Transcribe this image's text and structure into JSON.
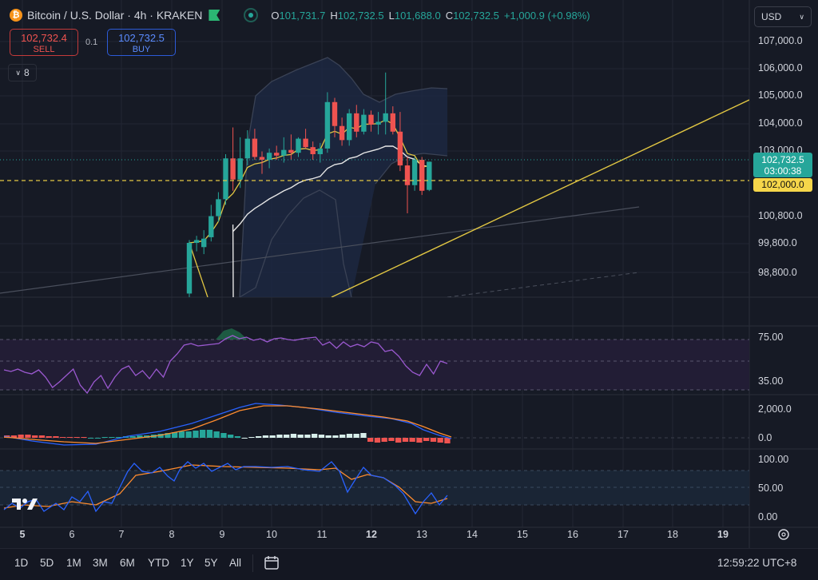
{
  "header": {
    "coin_icon": "bitcoin-icon",
    "title": "Bitcoin / U.S. Dollar · 4h · KRAKEN",
    "ohlc": {
      "open_key": "O",
      "open": "101,731.7",
      "high_key": "H",
      "high": "102,732.5",
      "low_key": "L",
      "low": "101,688.0",
      "close_key": "C",
      "close": "102,732.5",
      "change": "+1,000.9 (+0.98%)"
    }
  },
  "trade": {
    "sell_price": "102,732.4",
    "sell_label": "SELL",
    "buy_price": "102,732.5",
    "buy_label": "BUY",
    "spread": "0.1"
  },
  "indicators_toggle": {
    "count": "8"
  },
  "currency": {
    "selected": "USD"
  },
  "price_tags": {
    "last": "102,732.5",
    "countdown": "03:00:38",
    "level": "102,000.0"
  },
  "colors": {
    "up": "#26a69a",
    "down": "#ef5350",
    "ema": "#f5d64a",
    "sma": "#e6e6e6",
    "level": "#f5d64a",
    "rsi": "#9b59d0",
    "macd": "#2962ff",
    "signal": "#ff8c2e",
    "stoch_k": "#2962ff",
    "stoch_d": "#ff8c2e"
  },
  "price_axis": [
    "107,000.0",
    "106,000.0",
    "105,000.0",
    "104,000.0",
    "103,000.0",
    "100,800.0",
    "99,800.0",
    "98,800.0"
  ],
  "rsi_axis": [
    "75.00",
    "35.00"
  ],
  "macd_axis": [
    "2,000.0",
    "0.0"
  ],
  "stoch_axis": [
    "100.00",
    "50.00",
    "0.00"
  ],
  "time_axis": [
    {
      "label": "5",
      "bold": true
    },
    {
      "label": "6",
      "bold": false
    },
    {
      "label": "7",
      "bold": false
    },
    {
      "label": "8",
      "bold": false
    },
    {
      "label": "9",
      "bold": false
    },
    {
      "label": "10",
      "bold": false
    },
    {
      "label": "11",
      "bold": false
    },
    {
      "label": "12",
      "bold": true
    },
    {
      "label": "13",
      "bold": false
    },
    {
      "label": "14",
      "bold": false
    },
    {
      "label": "15",
      "bold": false
    },
    {
      "label": "16",
      "bold": false
    },
    {
      "label": "17",
      "bold": false
    },
    {
      "label": "18",
      "bold": false
    },
    {
      "label": "19",
      "bold": true
    }
  ],
  "ranges": [
    "1D",
    "5D",
    "1M",
    "3M",
    "6M",
    "YTD",
    "1Y",
    "5Y",
    "All"
  ],
  "footer": {
    "clock": "12:59:22 UTC+8"
  },
  "chart_data": {
    "type": "candlestick",
    "interval": "4h",
    "candles": [
      {
        "o": 98050,
        "h": 99950,
        "l": 97700,
        "c": 99850
      },
      {
        "o": 99850,
        "h": 100100,
        "l": 99550,
        "c": 99950
      },
      {
        "o": 99700,
        "h": 100300,
        "l": 99450,
        "c": 100000
      },
      {
        "o": 100050,
        "h": 101200,
        "l": 99900,
        "c": 100800
      },
      {
        "o": 100800,
        "h": 101650,
        "l": 100600,
        "c": 101400
      },
      {
        "o": 101400,
        "h": 103000,
        "l": 101200,
        "c": 102850
      },
      {
        "o": 102850,
        "h": 103950,
        "l": 101700,
        "c": 102100
      },
      {
        "o": 102100,
        "h": 103600,
        "l": 101800,
        "c": 102850
      },
      {
        "o": 102850,
        "h": 103850,
        "l": 102600,
        "c": 103550
      },
      {
        "o": 103550,
        "h": 103900,
        "l": 102800,
        "c": 102900
      },
      {
        "o": 102900,
        "h": 103100,
        "l": 102300,
        "c": 102800
      },
      {
        "o": 102800,
        "h": 103200,
        "l": 102500,
        "c": 103050
      },
      {
        "o": 103050,
        "h": 103300,
        "l": 102800,
        "c": 102950
      },
      {
        "o": 102950,
        "h": 103600,
        "l": 102700,
        "c": 103150
      },
      {
        "o": 103150,
        "h": 103700,
        "l": 102800,
        "c": 103050
      },
      {
        "o": 103050,
        "h": 103600,
        "l": 102900,
        "c": 103550
      },
      {
        "o": 103550,
        "h": 103900,
        "l": 103200,
        "c": 103250
      },
      {
        "o": 103250,
        "h": 103450,
        "l": 102800,
        "c": 103000
      },
      {
        "o": 103000,
        "h": 103400,
        "l": 102700,
        "c": 103200
      },
      {
        "o": 103200,
        "h": 105200,
        "l": 103050,
        "c": 104850
      },
      {
        "o": 104850,
        "h": 105000,
        "l": 103600,
        "c": 104000
      },
      {
        "o": 104000,
        "h": 104300,
        "l": 103300,
        "c": 103500
      },
      {
        "o": 103500,
        "h": 104600,
        "l": 103300,
        "c": 104450
      },
      {
        "o": 104450,
        "h": 104750,
        "l": 103600,
        "c": 103800
      },
      {
        "o": 103800,
        "h": 104600,
        "l": 103700,
        "c": 104400
      },
      {
        "o": 104400,
        "h": 104550,
        "l": 103800,
        "c": 104050
      },
      {
        "o": 104050,
        "h": 104500,
        "l": 103700,
        "c": 104150
      },
      {
        "o": 104150,
        "h": 105900,
        "l": 103700,
        "c": 104450
      },
      {
        "o": 104450,
        "h": 104700,
        "l": 103700,
        "c": 103800
      },
      {
        "o": 103800,
        "h": 104500,
        "l": 102400,
        "c": 102600
      },
      {
        "o": 102600,
        "h": 102900,
        "l": 100900,
        "c": 101900
      },
      {
        "o": 101900,
        "h": 102900,
        "l": 101700,
        "c": 102800
      },
      {
        "o": 102800,
        "h": 102900,
        "l": 101550,
        "c": 101700
      },
      {
        "o": 101731.7,
        "h": 102732.5,
        "l": 101688.0,
        "c": 102732.5
      }
    ],
    "price_range": [
      97700,
      107500
    ],
    "horizontal_level": 102000,
    "indicators": [
      "EMA",
      "SMA",
      "Bollinger Bands",
      "RSI",
      "MACD",
      "Stochastic RSI"
    ]
  }
}
